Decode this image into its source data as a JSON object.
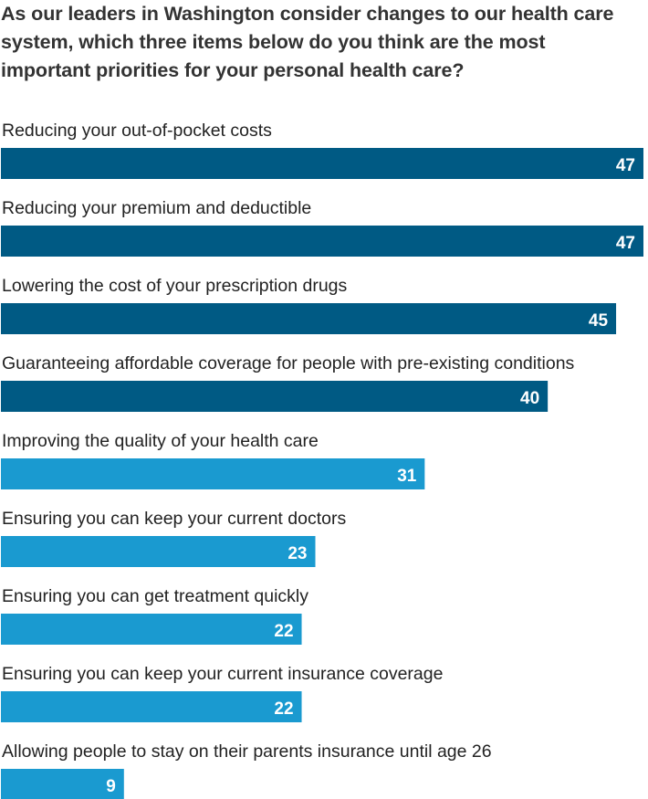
{
  "chart_data": {
    "type": "bar",
    "orientation": "horizontal",
    "title": "As our leaders in Washington consider changes to our health care system, which three items below do you think are the most important priorities for your personal health care?",
    "categories": [
      "Reducing your out-of-pocket costs",
      "Reducing your premium and deductible",
      "Lowering the cost of your prescription drugs",
      "Guaranteeing affordable coverage for people with pre-existing conditions",
      "Improving the quality of your health care",
      "Ensuring you can keep your current doctors",
      "Ensuring you can get treatment quickly",
      "Ensuring you can keep your current insurance coverage",
      "Allowing people to stay on their parents insurance until age 26"
    ],
    "values": [
      47,
      47,
      45,
      40,
      31,
      23,
      22,
      22,
      9
    ],
    "value_labels": [
      "47",
      "47",
      "45",
      "40",
      "31",
      "23",
      "22",
      "22",
      "9"
    ],
    "bar_colors": [
      "#005a84",
      "#005a84",
      "#005a84",
      "#005a84",
      "#1a9ad0",
      "#1a9ad0",
      "#1a9ad0",
      "#1a9ad0",
      "#1a9ad0"
    ],
    "xlim": [
      0,
      47
    ],
    "grid": false,
    "legend": "none",
    "xlabel": "",
    "ylabel": ""
  }
}
